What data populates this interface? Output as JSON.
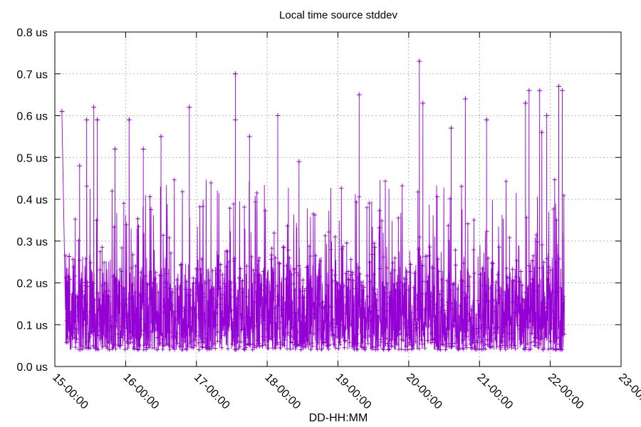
{
  "chart_data": {
    "type": "line",
    "title": "Local time source stddev",
    "xlabel": "DD-HH:MM",
    "ylabel": "",
    "x_ticks": [
      "15-00:00",
      "16-00:00",
      "17-00:00",
      "18-00:00",
      "19-00:00",
      "20-00:00",
      "21-00:00",
      "22-00:00",
      "23-00:00"
    ],
    "y_ticks": [
      "0.0 us",
      "0.1 us",
      "0.2 us",
      "0.3 us",
      "0.4 us",
      "0.5 us",
      "0.6 us",
      "0.7 us",
      "0.8 us"
    ],
    "xlim_hours": [
      0,
      8
    ],
    "ylim": [
      0,
      0.8
    ],
    "y_unit": "us",
    "grid": true,
    "series_color": "#9400d3",
    "marker": "plus",
    "data_range_hours": [
      0.15,
      7.2
    ],
    "baseline_range": [
      0.04,
      0.3
    ],
    "spikes": [
      {
        "x": 0.1,
        "y": 0.61
      },
      {
        "x": 0.35,
        "y": 0.48
      },
      {
        "x": 0.45,
        "y": 0.59
      },
      {
        "x": 0.55,
        "y": 0.62
      },
      {
        "x": 0.6,
        "y": 0.59
      },
      {
        "x": 0.85,
        "y": 0.52
      },
      {
        "x": 1.05,
        "y": 0.59
      },
      {
        "x": 1.25,
        "y": 0.52
      },
      {
        "x": 1.5,
        "y": 0.55
      },
      {
        "x": 1.9,
        "y": 0.62
      },
      {
        "x": 2.55,
        "y": 0.59
      },
      {
        "x": 2.55,
        "y": 0.7
      },
      {
        "x": 2.75,
        "y": 0.55
      },
      {
        "x": 3.15,
        "y": 0.6
      },
      {
        "x": 3.45,
        "y": 0.49
      },
      {
        "x": 4.3,
        "y": 0.65
      },
      {
        "x": 5.15,
        "y": 0.73
      },
      {
        "x": 5.2,
        "y": 0.63
      },
      {
        "x": 5.6,
        "y": 0.57
      },
      {
        "x": 5.8,
        "y": 0.64
      },
      {
        "x": 6.1,
        "y": 0.59
      },
      {
        "x": 6.7,
        "y": 0.66
      },
      {
        "x": 6.85,
        "y": 0.66
      },
      {
        "x": 6.65,
        "y": 0.63
      },
      {
        "x": 6.95,
        "y": 0.6
      },
      {
        "x": 6.88,
        "y": 0.56
      },
      {
        "x": 7.12,
        "y": 0.67
      },
      {
        "x": 7.17,
        "y": 0.66
      }
    ]
  }
}
